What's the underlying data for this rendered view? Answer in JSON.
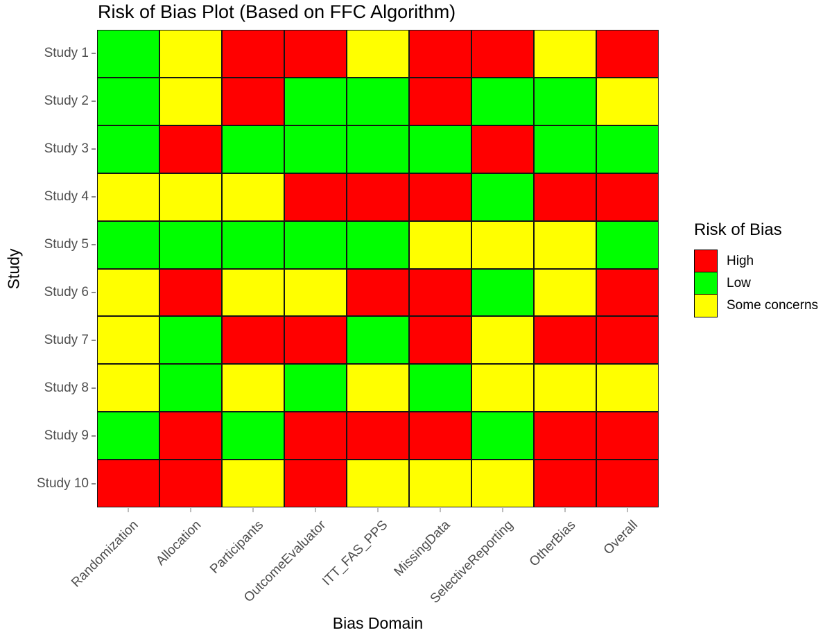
{
  "chart_data": {
    "type": "heatmap",
    "title": "Risk of Bias Plot (Based on FFC Algorithm)",
    "xlabel": "Bias Domain",
    "ylabel": "Study",
    "x_categories": [
      "Randomization",
      "Allocation",
      "Participants",
      "OutcomeEvaluator",
      "ITT_FAS_PPS",
      "MissingData",
      "SelectiveReporting",
      "OtherBias",
      "Overall"
    ],
    "y_categories": [
      "Study 1",
      "Study 2",
      "Study 3",
      "Study 4",
      "Study 5",
      "Study 6",
      "Study 7",
      "Study 8",
      "Study 9",
      "Study 10"
    ],
    "legend": {
      "title": "Risk of Bias",
      "position": "right",
      "entries": [
        {
          "label": "High",
          "color": "#FF0000"
        },
        {
          "label": "Low",
          "color": "#00FF00"
        },
        {
          "label": "Some concerns",
          "color": "#FFFF00"
        }
      ]
    },
    "color_scale": {
      "High": "#FF0000",
      "Low": "#00FF00",
      "Some concerns": "#FFFF00"
    },
    "grid": "off",
    "cell_border_color": "#141414",
    "values": [
      [
        "Low",
        "Some concerns",
        "High",
        "High",
        "Some concerns",
        "High",
        "High",
        "Some concerns",
        "High"
      ],
      [
        "Low",
        "Some concerns",
        "High",
        "Low",
        "Low",
        "High",
        "Low",
        "Low",
        "Some concerns"
      ],
      [
        "Low",
        "High",
        "Low",
        "Low",
        "Low",
        "Low",
        "High",
        "Low",
        "Low"
      ],
      [
        "Some concerns",
        "Some concerns",
        "Some concerns",
        "High",
        "High",
        "High",
        "Low",
        "High",
        "High"
      ],
      [
        "Low",
        "Low",
        "Low",
        "Low",
        "Low",
        "Some concerns",
        "Some concerns",
        "Some concerns",
        "Low"
      ],
      [
        "Some concerns",
        "High",
        "Some concerns",
        "Some concerns",
        "High",
        "High",
        "Low",
        "Some concerns",
        "High"
      ],
      [
        "Some concerns",
        "Low",
        "High",
        "High",
        "Low",
        "High",
        "Some concerns",
        "High",
        "High"
      ],
      [
        "Some concerns",
        "Low",
        "Some concerns",
        "Low",
        "Some concerns",
        "Low",
        "Some concerns",
        "Some concerns",
        "Some concerns"
      ],
      [
        "Low",
        "High",
        "Low",
        "High",
        "High",
        "High",
        "Low",
        "High",
        "High"
      ],
      [
        "High",
        "High",
        "Some concerns",
        "High",
        "Some concerns",
        "Some concerns",
        "Some concerns",
        "High",
        "High"
      ]
    ]
  }
}
